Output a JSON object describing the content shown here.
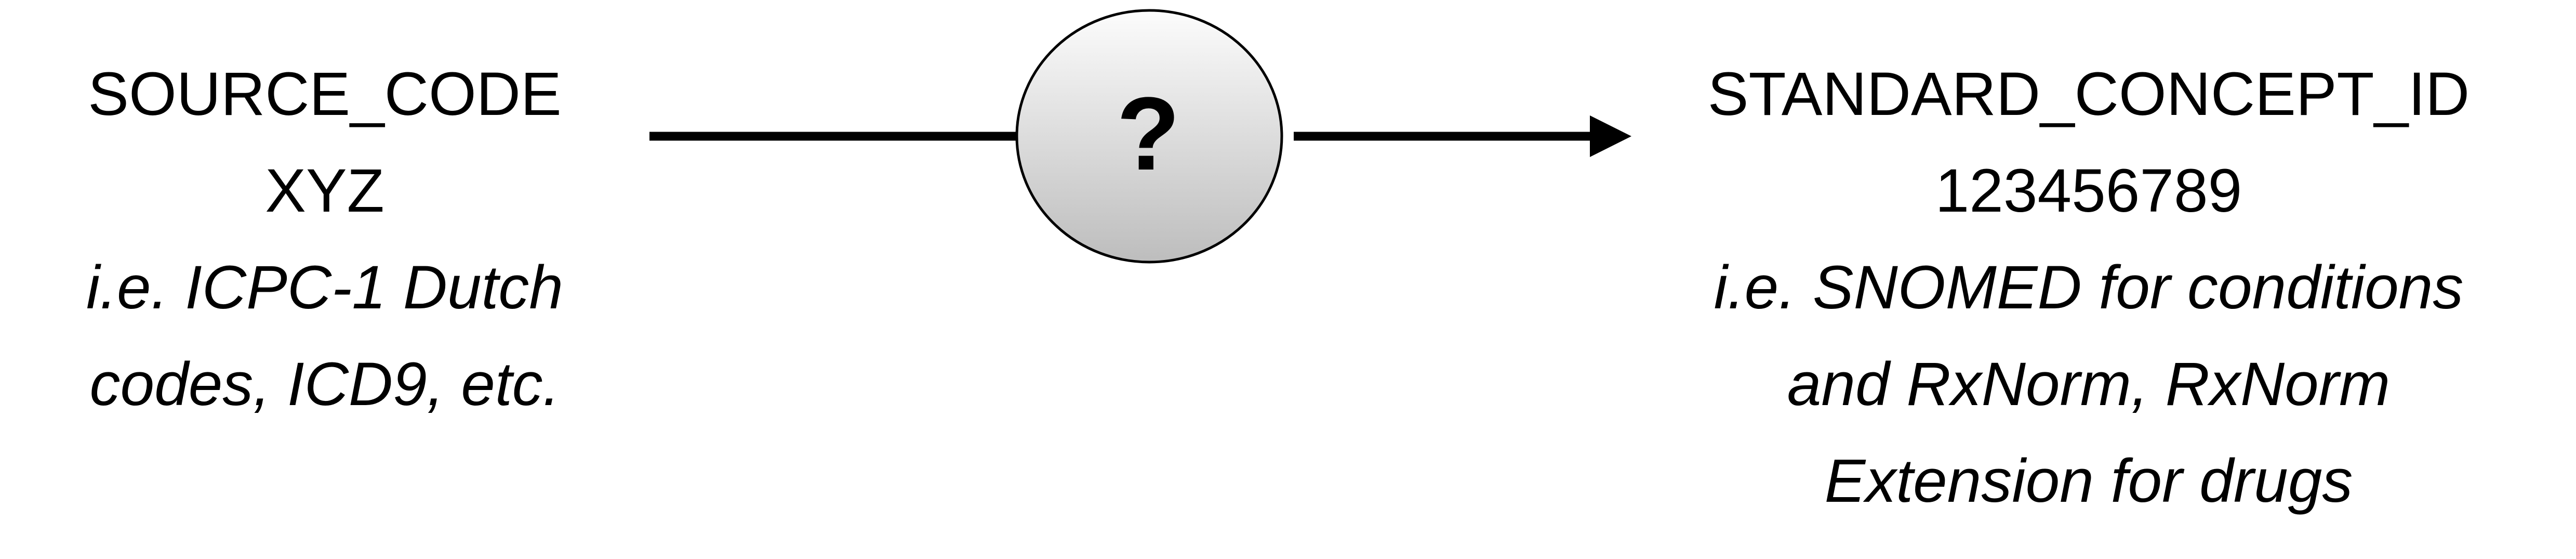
{
  "source": {
    "title": "SOURCE_CODE",
    "value": "XYZ",
    "examples_line1": "i.e. ICPC-1 Dutch",
    "examples_line2": "codes, ICD9, etc."
  },
  "mapping": {
    "symbol": "?"
  },
  "target": {
    "title": "STANDARD_CONCEPT_ID",
    "value": "123456789",
    "examples_line1": "i.e. SNOMED for conditions",
    "examples_line2": "and RxNorm, RxNorm",
    "examples_line3": "Extension for drugs"
  },
  "colors": {
    "arrow": "#000000",
    "circle_outline": "#000000",
    "circle_fill_light": "#fcfcfc",
    "circle_fill_dark": "#bdbdbd"
  }
}
